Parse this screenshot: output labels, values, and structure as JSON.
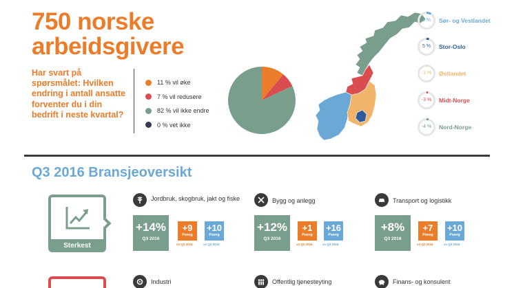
{
  "header": {
    "title": "750 norske arbeidsgivere",
    "question": "Har svart på spørsmålet: Hvilken endring i antall ansatte forventer du i din bedrift i neste kvartal?"
  },
  "legend": [
    {
      "label": "11 % vil øke",
      "color": "#ea7c2a"
    },
    {
      "label": "7 % vil redusere",
      "color": "#d94d50"
    },
    {
      "label": "82 % vil ikke endre",
      "color": "#7a9e8c"
    },
    {
      "label": "0 % vet ikke",
      "color": "#333a55"
    }
  ],
  "chart_data": {
    "type": "pie",
    "values": [
      11,
      7,
      82,
      0
    ],
    "colors": [
      "#ea7c2a",
      "#d94d50",
      "#7a9e8c",
      "#333a55"
    ]
  },
  "regions": [
    {
      "name": "Sør- og Vestlandet",
      "value": "9 %",
      "pct": 9,
      "color": "#6aa8d6"
    },
    {
      "name": "Stor-Oslo",
      "value": "5 %",
      "pct": 5,
      "color": "#2e5c9a"
    },
    {
      "name": "Østlandet",
      "value": "-1 %",
      "pct": 1,
      "color": "#f2b36a"
    },
    {
      "name": "Midt-Norge",
      "value": "-3 %",
      "pct": 3,
      "color": "#d94d50"
    },
    {
      "name": "Nord-Norge",
      "value": "-4 %",
      "pct": 4,
      "color": "#7a9e8c"
    }
  ],
  "section": {
    "title": "Q3 2016 Bransjeoversikt",
    "strongest_label": "Sterkest"
  },
  "industries": [
    {
      "name": "Jordbruk, skogbruk, jakt og fiske",
      "icon": "wheat-icon",
      "main": "+14%",
      "main_sub": "Q3 2016",
      "vs_q2": "+9",
      "vs_q3": "+10",
      "points": "Poeng",
      "vs_q2_label": "vs Q2 2016",
      "vs_q3_label": "vs Q3 2015"
    },
    {
      "name": "Bygg og anlegg",
      "icon": "tools-icon",
      "main": "+12%",
      "main_sub": "Q3 2016",
      "vs_q2": "+1",
      "vs_q3": "+16",
      "points": "Poeng",
      "vs_q2_label": "vs Q2 2016",
      "vs_q3_label": "vs Q3 2015"
    },
    {
      "name": "Transport og logistikk",
      "icon": "car-icon",
      "main": "+8%",
      "main_sub": "Q3 2016",
      "vs_q2": "+7",
      "vs_q3": "+10",
      "points": "Poeng",
      "vs_q2_label": "vs Q2 2016",
      "vs_q3_label": "vs Q3 2015"
    },
    {
      "name": "Industri",
      "icon": "gears-icon"
    },
    {
      "name": "Offentlig tjenesteyting",
      "icon": "people-icon"
    },
    {
      "name": "Finans- og konsulent",
      "icon": "piggy-bank-icon"
    }
  ],
  "colors": {
    "orange": "#ea7c2a",
    "green": "#7a9e8c",
    "red": "#d94d50",
    "blue": "#6aa8d6"
  }
}
